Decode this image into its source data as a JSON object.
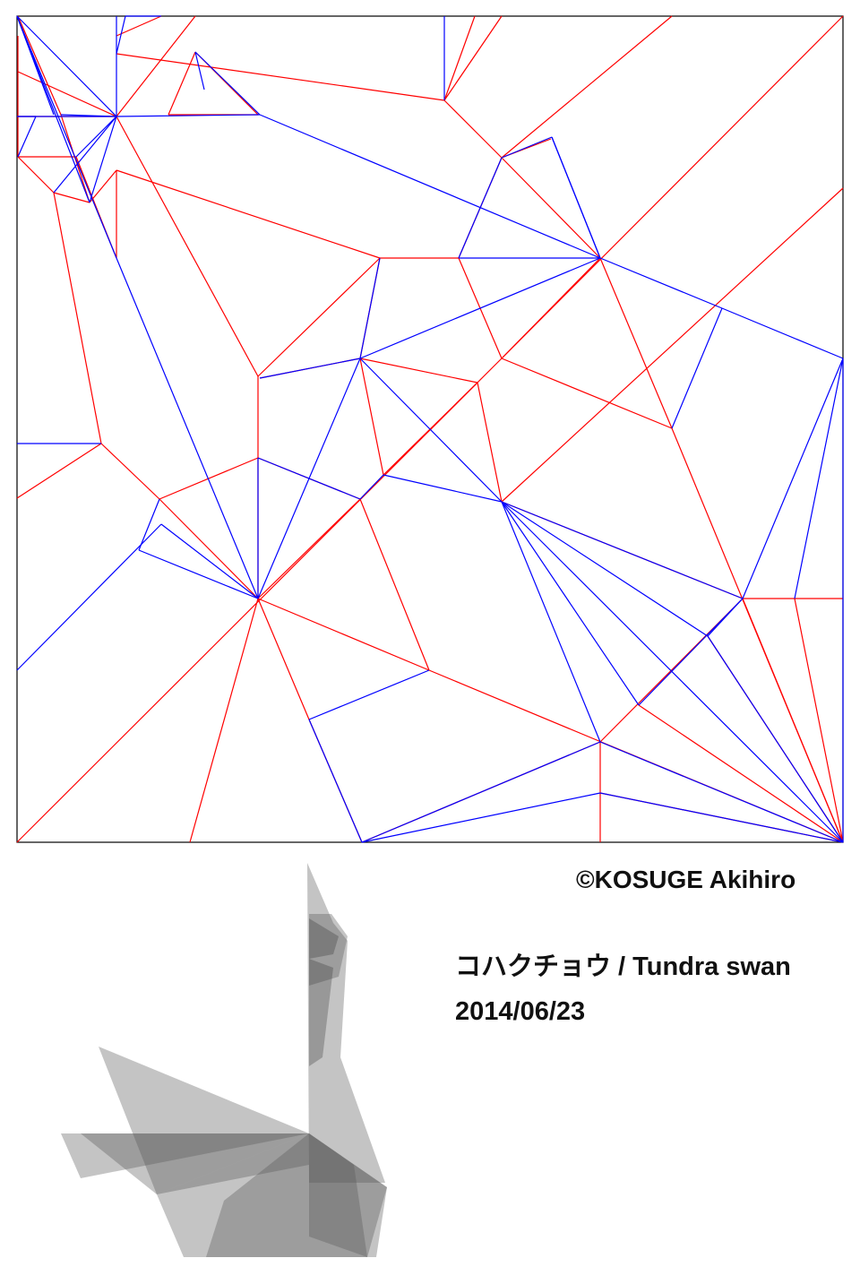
{
  "copyright": "©KOSUGE Akihiro",
  "title": "コハクチョウ / Tundra swan",
  "date": "2014/06/23",
  "colors": {
    "mountain_fold": "#ff0000",
    "valley_fold": "#0000ff",
    "border": "#000000",
    "preview_fill": "#555555"
  }
}
